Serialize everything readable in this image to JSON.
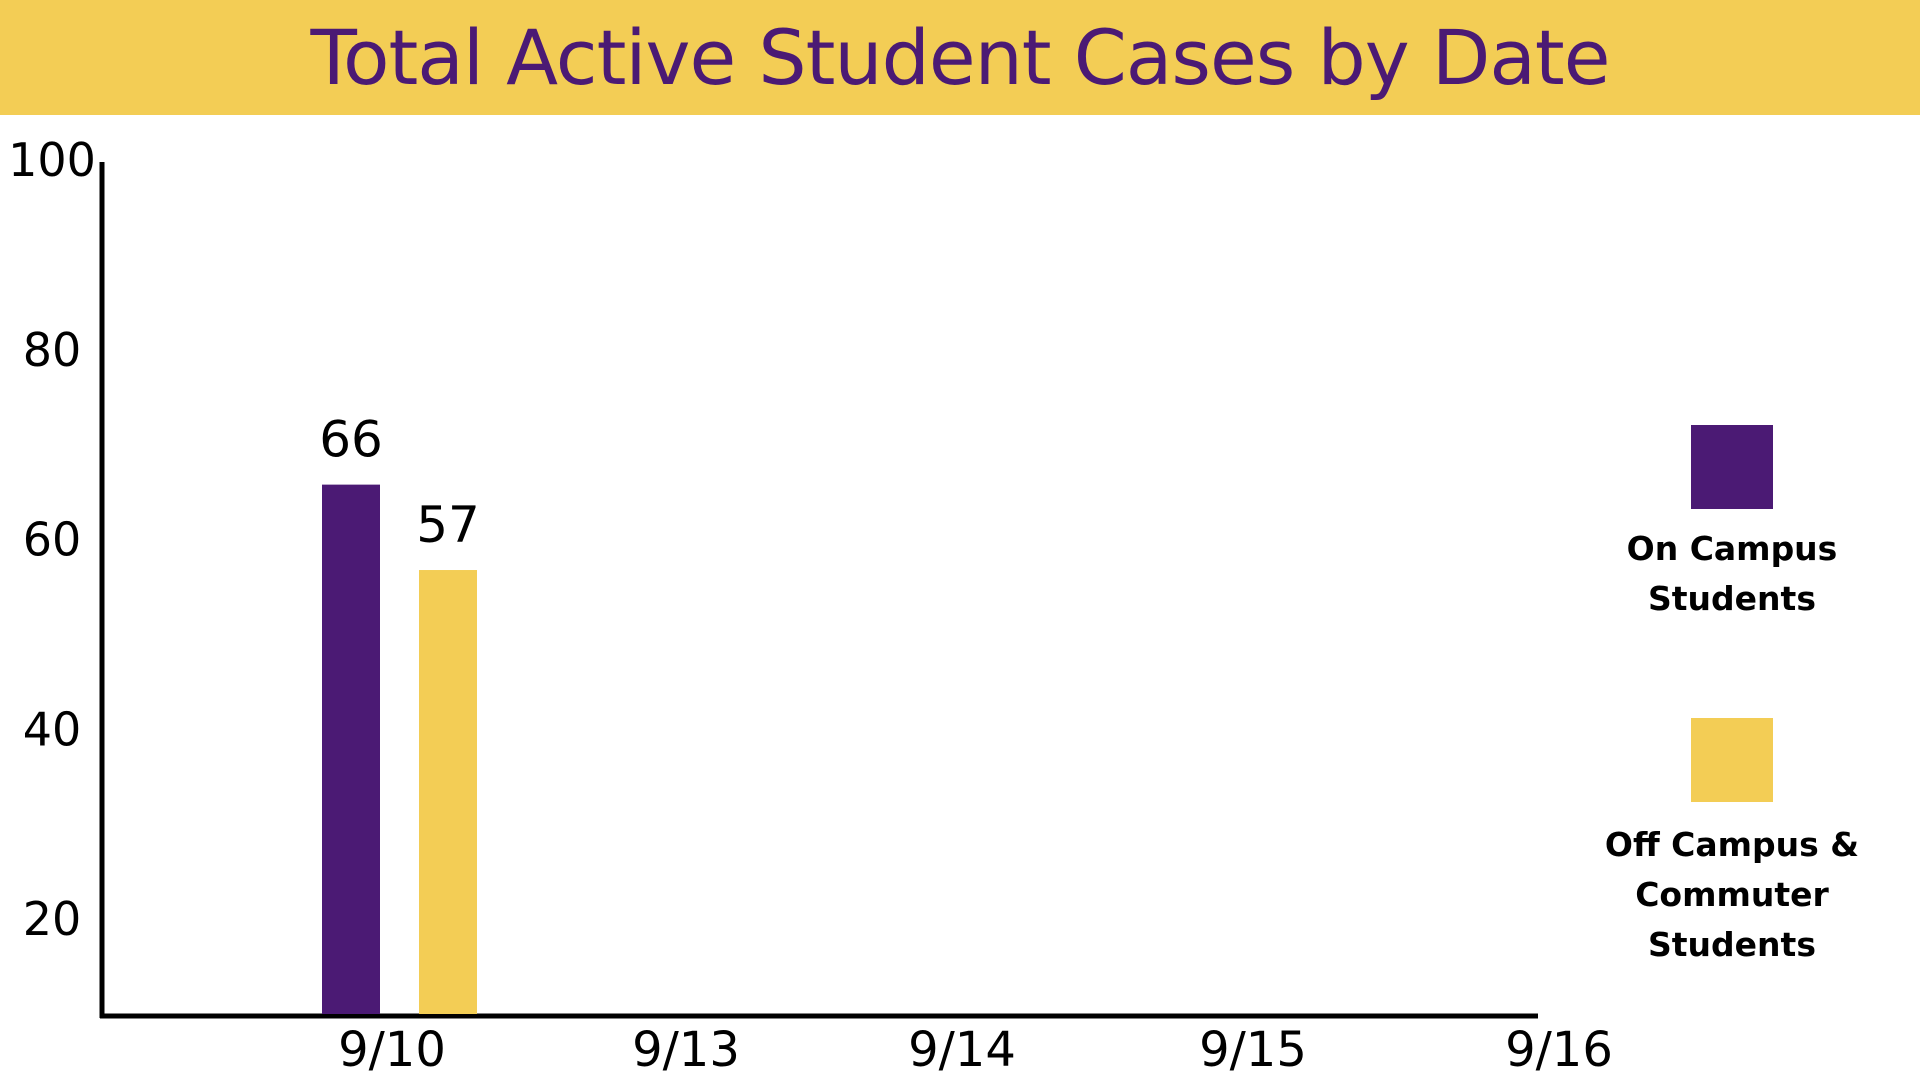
{
  "chart_data": {
    "type": "bar",
    "title": "Total Active Student Cases by Date",
    "xlabel": "",
    "ylabel": "",
    "categories": [
      "9/10",
      "9/13",
      "9/14",
      "9/15",
      "9/16"
    ],
    "series": [
      {
        "name": "On Campus Students",
        "legend_lines": [
          "On Campus",
          "Students"
        ],
        "color": "#4b1a74",
        "values": [
          66,
          null,
          null,
          null,
          null
        ],
        "data_labels": [
          "66",
          null,
          null,
          null,
          null
        ]
      },
      {
        "name": "Off Campus & Commuter Students",
        "legend_lines": [
          "Off Campus &",
          "Commuter Students"
        ],
        "color": "#f3cd55",
        "values": [
          57,
          null,
          null,
          null,
          null
        ],
        "data_labels": [
          "57",
          null,
          null,
          null,
          null
        ]
      }
    ],
    "ylim": [
      10,
      100
    ],
    "yticks": [
      20,
      40,
      60,
      80,
      100
    ],
    "grid": false,
    "legend_position": "right",
    "colors": {
      "title_bar": "#f3cd55",
      "title_text": "#4b1a74",
      "axis": "#000000"
    }
  }
}
